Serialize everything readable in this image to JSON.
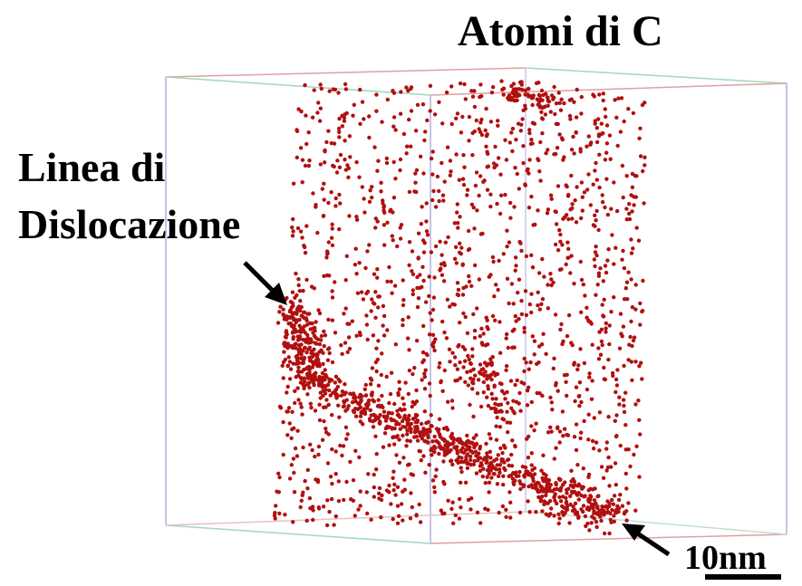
{
  "labels": {
    "atoms": "Atomi di C",
    "dislocation_line_1": "Linea di",
    "dislocation_line_2": "Dislocazione",
    "scale_bar": "10nm"
  }
}
